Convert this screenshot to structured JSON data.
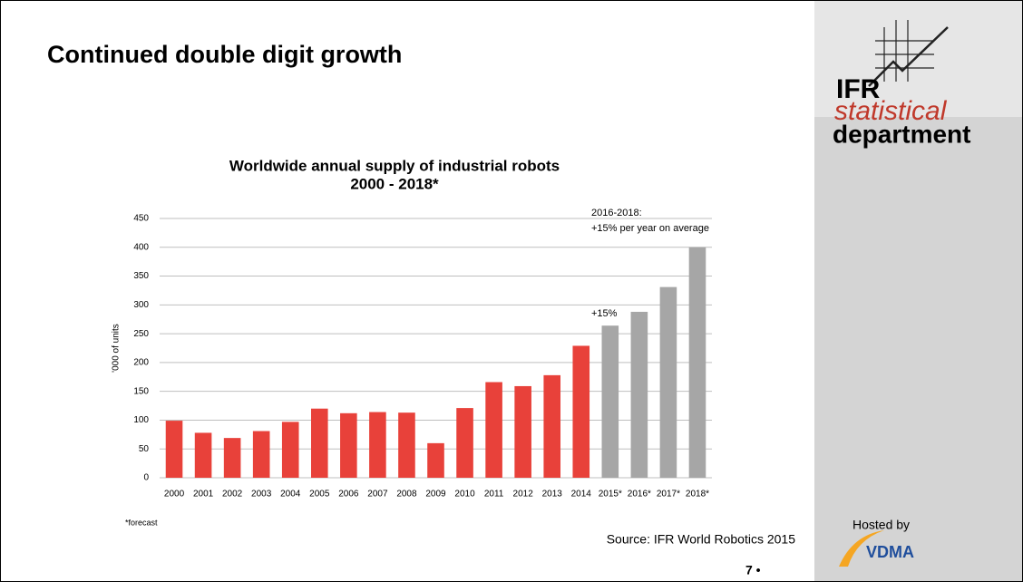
{
  "slide": {
    "title": "Continued double digit growth",
    "footnote": "*forecast",
    "source": "Source: IFR World Robotics 2015",
    "page_number": "7 •",
    "logo": {
      "ifr": "IFR",
      "statistical": "statistical",
      "department": "department",
      "hosted_by": "Hosted by",
      "vdma": "VDMA"
    }
  },
  "chart_data": {
    "type": "bar",
    "title": "Worldwide annual supply of industrial robots",
    "subtitle": "2000 - 2018*",
    "ylabel": "'000 of units",
    "categories": [
      "2000",
      "2001",
      "2002",
      "2003",
      "2004",
      "2005",
      "2006",
      "2007",
      "2008",
      "2009",
      "2010",
      "2011",
      "2012",
      "2013",
      "2014",
      "2015*",
      "2016*",
      "2017*",
      "2018*"
    ],
    "values": [
      99,
      78,
      69,
      81,
      97,
      120,
      112,
      114,
      113,
      60,
      121,
      166,
      159,
      178,
      229,
      264,
      288,
      331,
      400
    ],
    "colors": [
      "#e8413a",
      "#e8413a",
      "#e8413a",
      "#e8413a",
      "#e8413a",
      "#e8413a",
      "#e8413a",
      "#e8413a",
      "#e8413a",
      "#e8413a",
      "#e8413a",
      "#e8413a",
      "#e8413a",
      "#e8413a",
      "#e8413a",
      "#a6a6a6",
      "#a6a6a6",
      "#a6a6a6",
      "#a6a6a6"
    ],
    "ylim": [
      0,
      450
    ],
    "yticks": [
      0,
      50,
      100,
      150,
      200,
      250,
      300,
      350,
      400,
      450
    ],
    "grid": true,
    "annotations": [
      "2016-2018:",
      "+15% per year on average",
      "+15%"
    ]
  }
}
